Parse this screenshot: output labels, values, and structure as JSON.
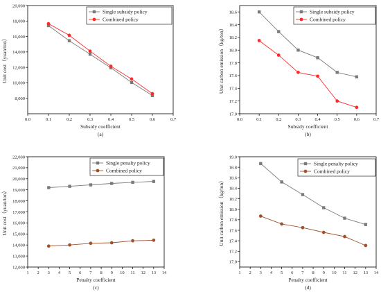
{
  "chart_data": [
    {
      "type": "line",
      "panel_label": "(a)",
      "xlabel": "Subsidy coefficient",
      "ylabel": "Unit cost（yuan/ton）",
      "xlim": [
        0.0,
        0.7
      ],
      "ylim": [
        6000,
        20000
      ],
      "xticks": [
        0.0,
        0.1,
        0.2,
        0.3,
        0.4,
        0.5,
        0.6,
        0.7
      ],
      "xtick_labels": [
        "0.0",
        "0.1",
        "0.2",
        "0.3",
        "0.4",
        "0.5",
        "0.6",
        "0.7"
      ],
      "yticks": [
        8000,
        10000,
        12000,
        14000,
        16000,
        18000,
        20000
      ],
      "ytick_labels": [
        "8,000",
        "10,000",
        "12,000",
        "14,000",
        "16,000",
        "18,000",
        "20,000"
      ],
      "legend_position": "top-right",
      "x": [
        0.1,
        0.2,
        0.3,
        0.4,
        0.5,
        0.6
      ],
      "series": [
        {
          "name": "Single subsidy policy",
          "color": "#7a7a7a",
          "marker": "square",
          "values": [
            17400,
            15450,
            13700,
            11950,
            10050,
            8350
          ]
        },
        {
          "name": "Combined policy",
          "color": "#ff2a2a",
          "marker": "circle",
          "values": [
            17650,
            16150,
            14100,
            12150,
            10500,
            8600
          ]
        }
      ]
    },
    {
      "type": "line",
      "panel_label": "(b)",
      "xlabel": "Subsidy coefficient",
      "ylabel": "Unit carbon emission（kg/ton）",
      "xlim": [
        0.0,
        0.7
      ],
      "ylim": [
        17.0,
        18.7
      ],
      "xticks": [
        0.0,
        0.1,
        0.2,
        0.3,
        0.4,
        0.5,
        0.6,
        0.7
      ],
      "xtick_labels": [
        "0.0",
        "0.1",
        "0.2",
        "0.3",
        "0.4",
        "0.5",
        "0.6",
        "0.7"
      ],
      "yticks": [
        17.0,
        17.2,
        17.4,
        17.6,
        17.8,
        18.0,
        18.2,
        18.4,
        18.6
      ],
      "ytick_labels": [
        "17.0",
        "17.2",
        "17.4",
        "17.6",
        "17.8",
        "18.0",
        "18.2",
        "18.4",
        "18.6"
      ],
      "legend_position": "top-right",
      "x": [
        0.1,
        0.2,
        0.3,
        0.4,
        0.5,
        0.6
      ],
      "series": [
        {
          "name": "Single subsidy policy",
          "color": "#7a7a7a",
          "marker": "square",
          "values": [
            18.6,
            18.29,
            18.0,
            17.88,
            17.65,
            17.58
          ]
        },
        {
          "name": "Combined policy",
          "color": "#ff2a2a",
          "marker": "circle",
          "values": [
            18.15,
            17.92,
            17.65,
            17.59,
            17.2,
            17.1
          ]
        }
      ]
    },
    {
      "type": "line",
      "panel_label": "(c)",
      "xlabel": "Penalty coefficient",
      "ylabel": "Unit cost（yuan/ton）",
      "xlim": [
        1,
        14
      ],
      "ylim": [
        12000,
        22000
      ],
      "xticks": [
        1,
        2,
        3,
        4,
        5,
        6,
        7,
        8,
        9,
        10,
        11,
        12,
        13,
        14
      ],
      "xtick_labels": [
        "1",
        "2",
        "3",
        "4",
        "5",
        "6",
        "7",
        "8",
        "9",
        "10",
        "11",
        "12",
        "13",
        "14"
      ],
      "yticks": [
        12000,
        13000,
        14000,
        15000,
        16000,
        17000,
        18000,
        19000,
        20000,
        21000,
        22000
      ],
      "ytick_labels": [
        "12,000",
        "13,000",
        "14,000",
        "15,000",
        "16,000",
        "17,000",
        "18,000",
        "19,000",
        "20,000",
        "21,000",
        "22,000"
      ],
      "legend_position": "top-right",
      "x": [
        3,
        5,
        7,
        9,
        11,
        13
      ],
      "series": [
        {
          "name": "Single penalty policy",
          "color": "#7a7a7a",
          "marker": "square",
          "values": [
            19200,
            19320,
            19450,
            19580,
            19680,
            19760
          ]
        },
        {
          "name": "Combined policy",
          "color": "#a0522d",
          "marker": "circle",
          "values": [
            13900,
            14000,
            14150,
            14200,
            14380,
            14430
          ]
        }
      ]
    },
    {
      "type": "line",
      "panel_label": "(d)",
      "xlabel": "Penalty coefficient",
      "ylabel": "Unit carbon emission（kg/ton）",
      "xlim": [
        1,
        14
      ],
      "ylim": [
        16.9,
        19.0
      ],
      "xticks": [
        1,
        2,
        3,
        4,
        5,
        6,
        7,
        8,
        9,
        10,
        11,
        12,
        13,
        14
      ],
      "xtick_labels": [
        "1",
        "2",
        "3",
        "4",
        "5",
        "6",
        "7",
        "8",
        "9",
        "10",
        "11",
        "12",
        "13",
        "14"
      ],
      "yticks": [
        17.0,
        17.2,
        17.4,
        17.6,
        17.8,
        18.0,
        18.2,
        18.4,
        18.6,
        18.8,
        19.0
      ],
      "ytick_labels": [
        "17.0",
        "17.2",
        "17.4",
        "17.6",
        "17.8",
        "18.0",
        "18.2",
        "18.4",
        "18.6",
        "18.8",
        "19.0"
      ],
      "legend_position": "top-right",
      "x": [
        3,
        5,
        7,
        9,
        11,
        13
      ],
      "series": [
        {
          "name": "Single penalty policy",
          "color": "#7a7a7a",
          "marker": "square",
          "values": [
            18.87,
            18.52,
            18.28,
            18.03,
            17.83,
            17.71
          ]
        },
        {
          "name": "Combined policy",
          "color": "#a0522d",
          "marker": "circle",
          "values": [
            17.87,
            17.72,
            17.65,
            17.56,
            17.48,
            17.31
          ]
        }
      ]
    }
  ]
}
